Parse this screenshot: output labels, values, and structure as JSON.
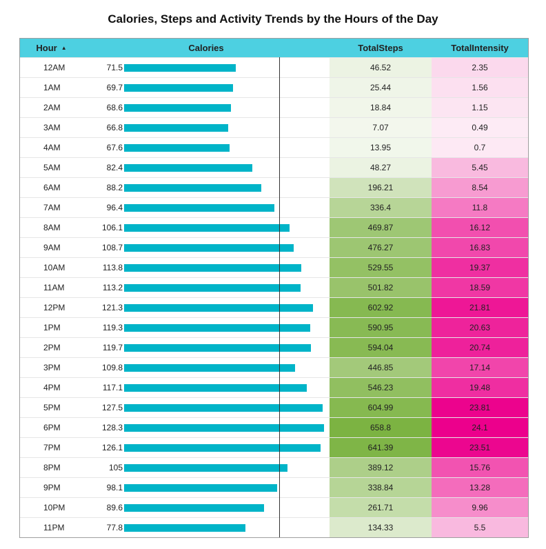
{
  "title": "Calories, Steps and Activity Trends by the Hours of the Day",
  "columns": {
    "hour": "Hour",
    "calories": "Calories",
    "steps": "TotalSteps",
    "intensity": "TotalIntensity"
  },
  "sort_indicator": "▲",
  "colors": {
    "header": "#4dd0e1",
    "bar": "#00b4c8",
    "steps_max": "#7cb342",
    "intensity_max": "#ec008c"
  },
  "chart_data": {
    "type": "table",
    "categories": [
      "12AM",
      "1AM",
      "2AM",
      "3AM",
      "4AM",
      "5AM",
      "6AM",
      "7AM",
      "8AM",
      "9AM",
      "10AM",
      "11AM",
      "12PM",
      "1PM",
      "2PM",
      "3PM",
      "4PM",
      "5PM",
      "6PM",
      "7PM",
      "8PM",
      "9PM",
      "10PM",
      "11PM"
    ],
    "series": [
      {
        "name": "Calories",
        "values": [
          71.5,
          69.7,
          68.6,
          66.8,
          67.6,
          82.4,
          88.2,
          96.4,
          106.1,
          108.7,
          113.8,
          113.2,
          121.3,
          119.3,
          119.7,
          109.8,
          117.1,
          127.5,
          128.3,
          126.1,
          105,
          98.1,
          89.6,
          77.8
        ]
      },
      {
        "name": "TotalSteps",
        "values": [
          46.52,
          25.44,
          18.84,
          7.07,
          13.95,
          48.27,
          196.21,
          336.4,
          469.87,
          476.27,
          529.55,
          501.82,
          602.92,
          590.95,
          594.04,
          446.85,
          546.23,
          604.99,
          658.8,
          641.39,
          389.12,
          338.84,
          261.71,
          134.33
        ]
      },
      {
        "name": "TotalIntensity",
        "values": [
          2.35,
          1.56,
          1.15,
          0.49,
          0.7,
          5.45,
          8.54,
          11.8,
          16.12,
          16.83,
          19.37,
          18.59,
          21.81,
          20.63,
          20.74,
          17.14,
          19.48,
          23.81,
          24.1,
          23.51,
          15.76,
          13.28,
          9.96,
          5.5
        ]
      }
    ],
    "calories_reference_line": 100,
    "calories_axis_max": 128.3
  }
}
